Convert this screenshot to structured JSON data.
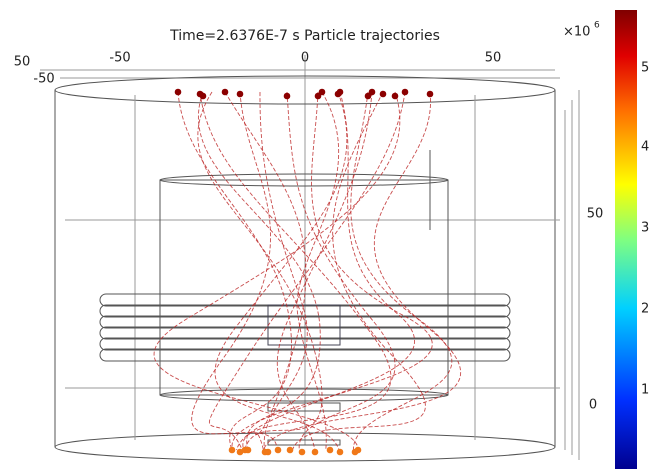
{
  "title": "Time=2.6376E-7 s  Particle trajectories",
  "axis_labels": {
    "top_x": [
      "-50",
      "0",
      "50"
    ],
    "left_y": [
      "50",
      "-50"
    ],
    "right_z": [
      "50",
      "0"
    ]
  },
  "colorbar": {
    "multiplier": "×10",
    "exponent": "6",
    "ticks": [
      "5",
      "4",
      "3",
      "2",
      "1"
    ]
  }
}
